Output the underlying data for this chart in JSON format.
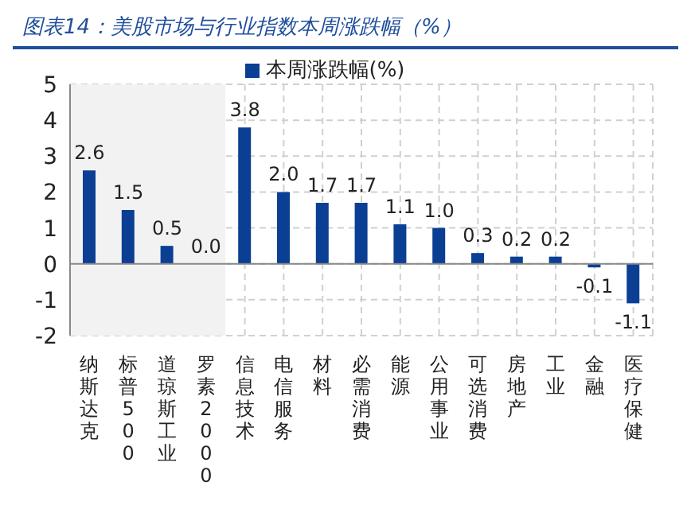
{
  "chart_data": {
    "type": "bar",
    "title": "图表14：美股市场与行业指数本周涨跌幅（%）",
    "categories": [
      "纳斯达克",
      "标普500",
      "道琼斯工业",
      "罗素2000",
      "信息技术",
      "电信服务",
      "材料",
      "必需消费",
      "能源",
      "公用事业",
      "可选消费",
      "房地产",
      "工业",
      "金融",
      "医疗保健"
    ],
    "series": [
      {
        "name": "本周涨跌幅(%)",
        "color": "#0a3f94",
        "values": [
          2.6,
          1.5,
          0.5,
          0.0,
          3.8,
          2.0,
          1.7,
          1.7,
          1.1,
          1.0,
          0.3,
          0.2,
          0.2,
          -0.1,
          -1.1
        ],
        "value_labels": [
          "2.6",
          "1.5",
          "0.5",
          "0.0",
          "3.8",
          "2.0",
          "1.7",
          "1.7",
          "1.1",
          "1.0",
          "0.3",
          "0.2",
          "0.2",
          "-0.1",
          "-1.1"
        ]
      }
    ],
    "ylim": [
      -2,
      5
    ],
    "yticks": [
      -2,
      -1,
      0,
      1,
      2,
      3,
      4,
      5
    ],
    "grid": true,
    "legend": "top",
    "bands": [
      {
        "axis": "x",
        "from": "纳斯达克",
        "to": "罗素2000",
        "color": "#f2f2f2"
      }
    ]
  }
}
